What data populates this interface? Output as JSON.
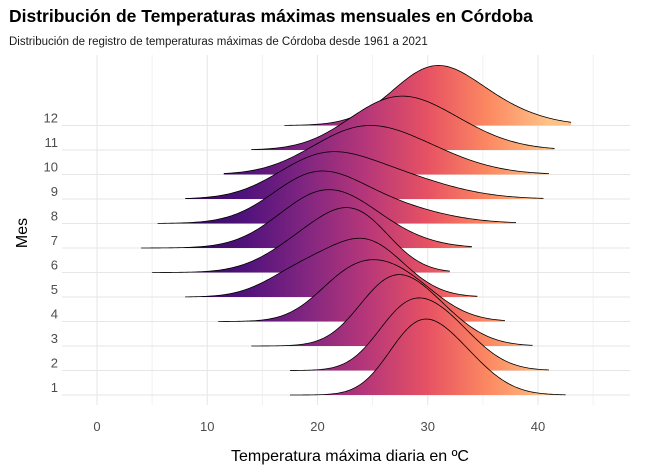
{
  "chart_data": {
    "type": "ridgeline",
    "title": "Distribución de Temperaturas máximas mensuales en Córdoba",
    "subtitle": "Distribución de registro de temperaturas máximas de Córdoba desde 1961 a 2021",
    "xlabel": "Temperatura máxima diaria en ºC",
    "ylabel": "Mes",
    "xlim": [
      -2.5,
      48.7
    ],
    "x_ticks": [
      0,
      10,
      20,
      30,
      40
    ],
    "grid": true,
    "legend": "none",
    "fill": "horizontal gradient by temperature (magma palette: dark purple at low, peach at high)",
    "gradient_colors": [
      "#2b0b57",
      "#51127c",
      "#822681",
      "#b73779",
      "#e75263",
      "#fc8961",
      "#fec287"
    ],
    "categories": [
      "1",
      "2",
      "3",
      "4",
      "5",
      "6",
      "7",
      "8",
      "9",
      "10",
      "11",
      "12"
    ],
    "series": [
      {
        "name": "1",
        "min": 17.5,
        "max": 42.5,
        "components": [
          [
            0.45,
            28.6,
            2.6
          ],
          [
            0.55,
            32.0,
            3.2
          ]
        ]
      },
      {
        "name": "2",
        "min": 17.5,
        "max": 41.0,
        "components": [
          [
            0.35,
            27.5,
            2.6
          ],
          [
            0.65,
            31.0,
            3.3
          ]
        ]
      },
      {
        "name": "3",
        "min": 14.0,
        "max": 39.5,
        "components": [
          [
            0.35,
            26.0,
            2.8
          ],
          [
            0.65,
            29.0,
            3.6
          ]
        ]
      },
      {
        "name": "4",
        "min": 11.0,
        "max": 37.0,
        "components": [
          [
            0.35,
            22.5,
            3.0
          ],
          [
            0.65,
            27.0,
            3.6
          ]
        ]
      },
      {
        "name": "5",
        "min": 8.0,
        "max": 34.5,
        "components": [
          [
            0.3,
            18.5,
            3.2
          ],
          [
            0.7,
            24.5,
            3.4
          ]
        ]
      },
      {
        "name": "6",
        "min": 5.0,
        "max": 32.0,
        "components": [
          [
            0.55,
            20.0,
            3.8
          ],
          [
            0.45,
            24.0,
            3.0
          ]
        ]
      },
      {
        "name": "7",
        "min": 4.0,
        "max": 34.0,
        "components": [
          [
            0.55,
            20.0,
            4.0
          ],
          [
            0.45,
            23.0,
            4.5
          ]
        ]
      },
      {
        "name": "8",
        "min": 5.5,
        "max": 38.0,
        "components": [
          [
            0.5,
            19.5,
            3.8
          ],
          [
            0.5,
            24.0,
            5.5
          ]
        ]
      },
      {
        "name": "9",
        "min": 8.0,
        "max": 40.5,
        "components": [
          [
            0.45,
            20.0,
            4.0
          ],
          [
            0.55,
            25.5,
            5.5
          ]
        ]
      },
      {
        "name": "10",
        "min": 11.5,
        "max": 41.0,
        "components": [
          [
            0.5,
            23.0,
            4.3
          ],
          [
            0.5,
            28.0,
            5.0
          ]
        ]
      },
      {
        "name": "11",
        "min": 14.0,
        "max": 41.5,
        "components": [
          [
            0.45,
            26.0,
            4.0
          ],
          [
            0.55,
            30.0,
            4.7
          ]
        ]
      },
      {
        "name": "12",
        "min": 17.0,
        "max": 43.0,
        "components": [
          [
            0.45,
            30.0,
            3.5
          ],
          [
            0.55,
            33.0,
            4.7
          ]
        ]
      }
    ]
  }
}
